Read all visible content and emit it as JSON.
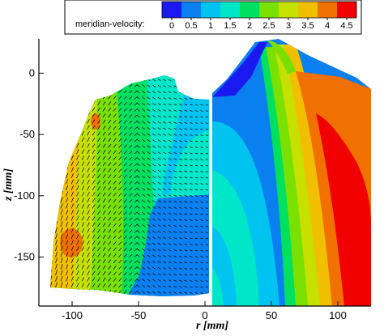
{
  "chart_data": {
    "type": "heatmap",
    "title": "",
    "xlabel": "r [mm]",
    "ylabel": "z [mm]",
    "xlim": [
      -125,
      125
    ],
    "ylim": [
      -190,
      28
    ],
    "x_ticks": [
      -100,
      -50,
      0,
      50,
      100
    ],
    "y_ticks": [
      0,
      -50,
      -100,
      -150
    ],
    "colorbar": {
      "title": "meridian-velocity:",
      "levels": [
        0,
        0.5,
        1,
        1.5,
        2,
        2.5,
        3,
        3.5,
        4,
        4.5
      ],
      "colors": [
        "#1a1af0",
        "#0a7ff0",
        "#00c3f0",
        "#00e6c8",
        "#00e060",
        "#7ae000",
        "#c6e000",
        "#f0c000",
        "#f07000",
        "#f00000"
      ]
    },
    "left_field": {
      "description_of_zones_from_outer_edge": [
        "yellow-orange",
        "yellow-green",
        "green",
        "cyan",
        "blue"
      ],
      "values_along_r": [
        {
          "r": -105,
          "value": 3.6
        },
        {
          "r": -80,
          "value": 3.2
        },
        {
          "r": -60,
          "value": 2.7
        },
        {
          "r": -45,
          "value": 2.1
        },
        {
          "r": -30,
          "value": 1.6
        },
        {
          "r": -10,
          "value": 1.1
        }
      ]
    },
    "right_field": {
      "values_along_r_at_z_minus_100": [
        {
          "r": 0,
          "value": 0.8
        },
        {
          "r": 20,
          "value": 1.2
        },
        {
          "r": 40,
          "value": 1.6
        },
        {
          "r": 55,
          "value": 2.6
        },
        {
          "r": 65,
          "value": 3.3
        },
        {
          "r": 80,
          "value": 4.1
        },
        {
          "r": 95,
          "value": 4.7
        }
      ]
    }
  }
}
